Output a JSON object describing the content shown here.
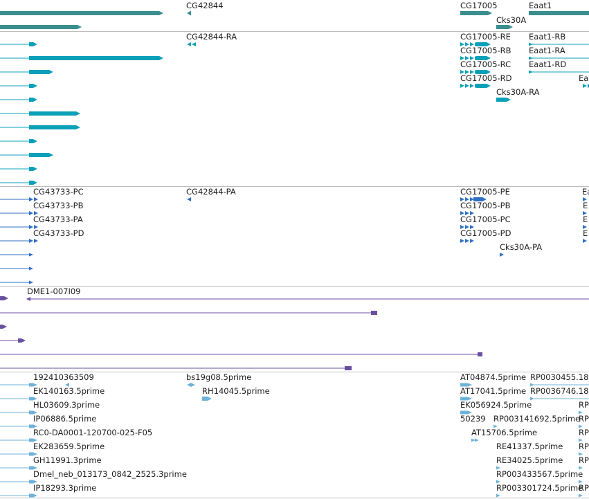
{
  "colors": {
    "gene": "#3a8e8e",
    "transcript": "#0aa0b8",
    "protein": "#2f6fc4",
    "clone": "#6a4fa0",
    "est": "#6fb2d8",
    "separator": "#bdbdbd"
  },
  "tracks": [
    {
      "key": "genes",
      "labels": [
        "CG42844",
        "CG17005",
        "Eaat1",
        "Cks30A"
      ]
    },
    {
      "key": "transcripts",
      "labels": [
        "CG42844-RA",
        "CG17005-RE",
        "Eaat1-RB",
        "CG17005-RB",
        "Eaat1-RA",
        "CG17005-RC",
        "Eaat1-RD",
        "CG17005-RD",
        "Ea",
        "Cks30A-RA"
      ]
    },
    {
      "key": "proteins",
      "labels": [
        "CG43733-PC",
        "CG42844-PA",
        "CG17005-PE",
        "Ea",
        "CG43733-PB",
        "CG17005-PB",
        "E",
        "CG43733-PA",
        "CG17005-PC",
        "E",
        "CG43733-PD",
        "CG17005-PD",
        "E",
        "Cks30A-PA"
      ]
    },
    {
      "key": "clones",
      "labels": [
        "DME1-007I09"
      ]
    },
    {
      "key": "ests",
      "labels": [
        "192410363509",
        "bs19g08.5prime",
        "AT04874.5prime",
        "RP0030455.18",
        "EK140163.5prime",
        "RH14045.5prime",
        "AT17041.5prime",
        "RP0036746.18",
        "HL03609.3prime",
        "EK056924.5prime",
        "RP",
        "IP06886.5prime",
        "50239",
        "RP003141692.5prime",
        "RP",
        "RC0-DA0001-120700-025-F05",
        "AT15706.5prime",
        "RP",
        "EK283659.5prime",
        "RE41337.5prime",
        "RP",
        "GH11991.3prime",
        "RE34025.5prime",
        "RP",
        "Dmel_neb_013173_0842_2525.3prime",
        "RP003433567.5prime",
        "IP18293.3prime",
        "RP003301724.5prime",
        "RP"
      ]
    }
  ]
}
